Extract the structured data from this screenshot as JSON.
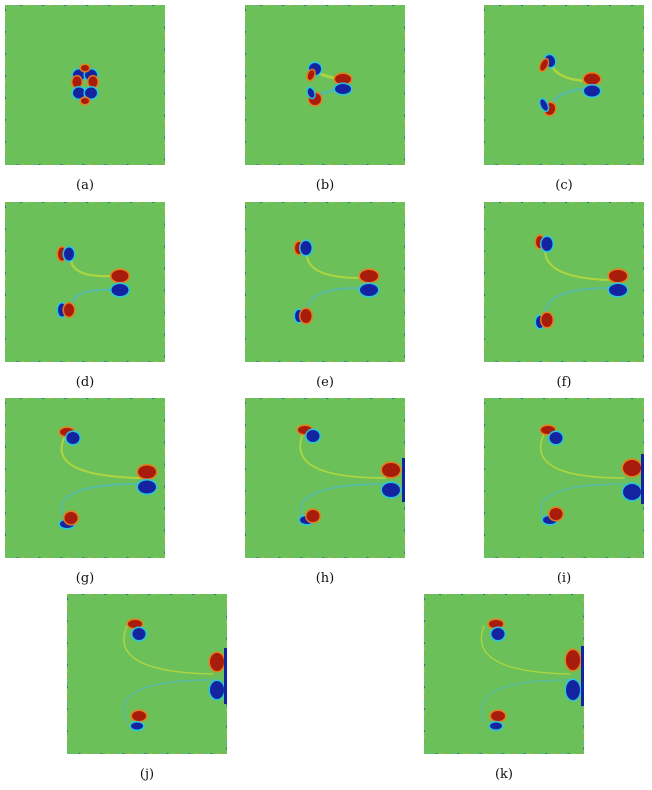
{
  "figure": {
    "colors": {
      "background_field": "#6cc05a",
      "positive": "#a81c0c",
      "positive_mid": "#f07a18",
      "negative": "#1424a0",
      "negative_mid": "#27c6e6",
      "tail_pos": "#b8d83c",
      "tail_neg": "#52b8b0"
    },
    "panels": [
      {
        "label": "(a)"
      },
      {
        "label": "(b)"
      },
      {
        "label": "(c)"
      },
      {
        "label": "(d)"
      },
      {
        "label": "(e)"
      },
      {
        "label": "(f)"
      },
      {
        "label": "(g)"
      },
      {
        "label": "(h)"
      },
      {
        "label": "(i)"
      },
      {
        "label": "(j)"
      },
      {
        "label": "(k)"
      }
    ]
  }
}
